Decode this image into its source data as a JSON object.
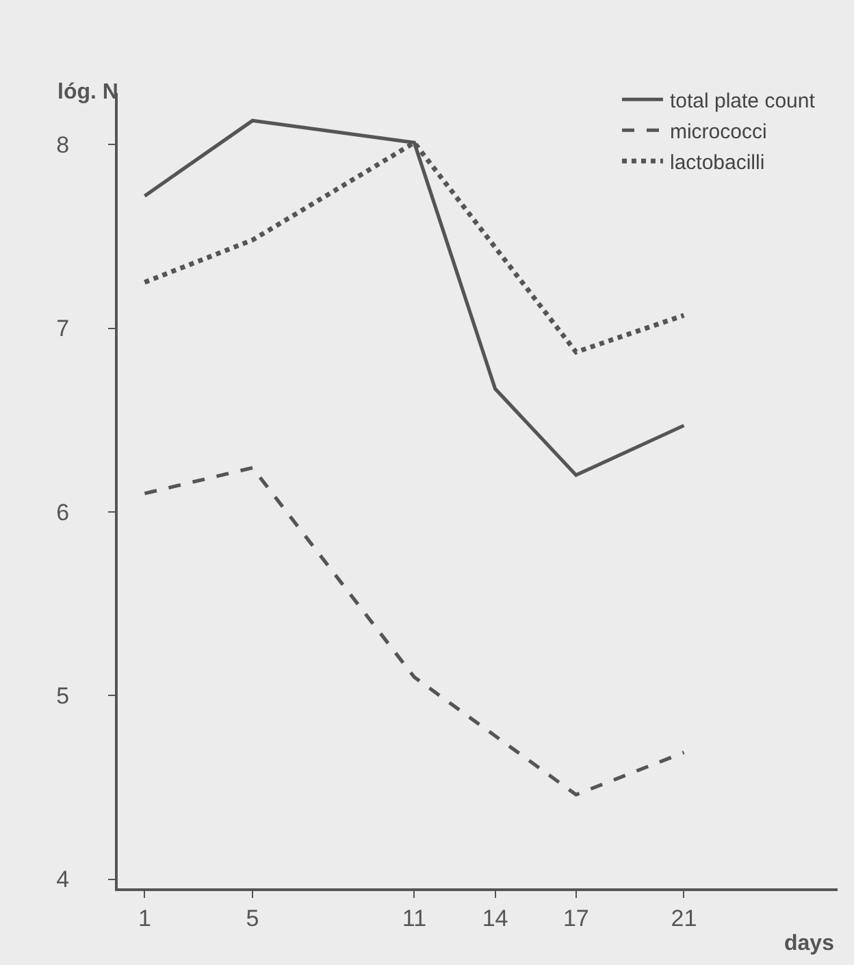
{
  "chart_data": {
    "type": "line",
    "xlabel": "days",
    "ylabel": "lóg. N",
    "x": [
      1,
      5,
      11,
      14,
      17,
      21
    ],
    "series": [
      {
        "name": "total plate count",
        "color": "#555555",
        "line_style": "solid",
        "values": [
          7.72,
          8.13,
          8.01,
          6.67,
          6.2,
          6.47
        ]
      },
      {
        "name": "micrococci",
        "color": "#555555",
        "line_style": "dashed",
        "values": [
          6.1,
          6.24,
          5.1,
          4.78,
          4.46,
          4.69
        ]
      },
      {
        "name": "lactobacilli",
        "color": "#555555",
        "line_style": "dotted",
        "values": [
          7.25,
          7.48,
          8.01,
          null,
          6.87,
          7.07
        ]
      }
    ],
    "xlim": [
      0,
      26.7
    ],
    "ylim": [
      3.95,
      8.28
    ],
    "xticks": [
      1,
      5,
      11,
      14,
      17,
      21
    ],
    "yticks": [
      4,
      5,
      6,
      7,
      8
    ],
    "grid": false,
    "legend": "top right",
    "marker": "none"
  }
}
